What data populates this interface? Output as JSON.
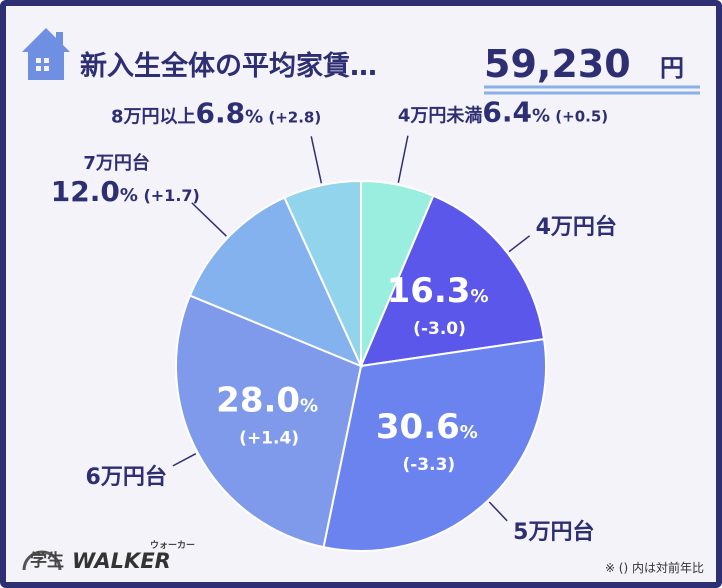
{
  "header": {
    "title": "新入生全体の平均家賃…",
    "amount": "59,230",
    "unit": "円"
  },
  "note": "※ () 内は対前年比",
  "logo": {
    "prefix": "学生",
    "name": "WALKER",
    "kana": "ウォーカー"
  },
  "colors": {
    "title": "#2e2e73",
    "house_icon": "#6f8fe3",
    "underline": "#8ab0e8"
  },
  "chart_data": {
    "type": "pie",
    "title": "",
    "slices": [
      {
        "label": "4万円未満",
        "value": 6.4,
        "value_text": "6.4",
        "change": "(+0.5)",
        "color": "#99eee0"
      },
      {
        "label": "4万円台",
        "value": 16.3,
        "value_text": "16.3",
        "change": "(-3.0)",
        "color": "#5a57ea"
      },
      {
        "label": "5万円台",
        "value": 30.6,
        "value_text": "30.6",
        "change": "(-3.3)",
        "color": "#6b83ee"
      },
      {
        "label": "6万円台",
        "value": 28.0,
        "value_text": "28.0",
        "change": "(+1.4)",
        "color": "#7f9aea"
      },
      {
        "label": "7万円台",
        "value": 12.0,
        "value_text": "12.0",
        "change": "(+1.7)",
        "color": "#84b2ee"
      },
      {
        "label": "8万円以上",
        "value": 6.8,
        "value_text": "6.8",
        "change": "(+2.8)",
        "color": "#92d4ec"
      }
    ],
    "percent_sign": "%",
    "start": "12 o'clock",
    "direction": "clockwise"
  }
}
